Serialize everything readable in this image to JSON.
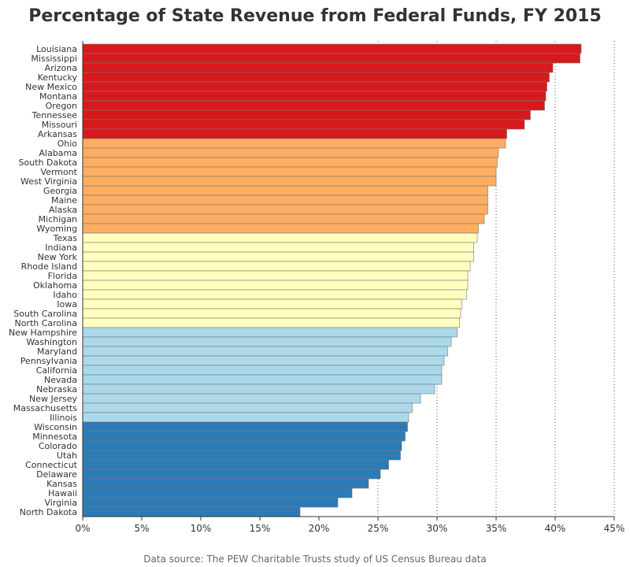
{
  "chart_data": {
    "type": "bar",
    "orientation": "horizontal",
    "title": "Percentage of State Revenue from Federal Funds, FY 2015",
    "source": "Data source: The PEW Charitable Trusts study of US Census Bureau data",
    "xlim": [
      0,
      45
    ],
    "xticks": [
      0,
      5,
      10,
      15,
      20,
      25,
      30,
      35,
      40,
      45
    ],
    "tick_suffix": "%",
    "grid": "vertical dotted at 25%, 30%, 35%, 40%, 45%",
    "colors": {
      "red": "#d7191c",
      "orange": "#fdae61",
      "yellow": "#ffffbf",
      "lightblue": "#abd9e9",
      "blue": "#2c7bb6",
      "bar_edge": "#777777",
      "axis": "#333333"
    },
    "categories": [
      "Louisiana",
      "Mississippi",
      "Arizona",
      "Kentucky",
      "New Mexico",
      "Montana",
      "Oregon",
      "Tennessee",
      "Missouri",
      "Arkansas",
      "Ohio",
      "Alabama",
      "South Dakota",
      "Vermont",
      "West Virginia",
      "Georgia",
      "Maine",
      "Alaska",
      "Michigan",
      "Wyoming",
      "Texas",
      "Indiana",
      "New York",
      "Rhode Island",
      "Florida",
      "Oklahoma",
      "Idaho",
      "Iowa",
      "South Carolina",
      "North Carolina",
      "New Hampshire",
      "Washington",
      "Maryland",
      "Pennsylvania",
      "California",
      "Nevada",
      "Nebraska",
      "New Jersey",
      "Massachusetts",
      "Illinois",
      "Wisconsin",
      "Minnesota",
      "Colorado",
      "Utah",
      "Connecticut",
      "Delaware",
      "Kansas",
      "Hawaii",
      "Virginia",
      "North Dakota"
    ],
    "values": [
      42.2,
      42.1,
      39.8,
      39.5,
      39.3,
      39.2,
      39.1,
      37.9,
      37.4,
      35.9,
      35.8,
      35.2,
      35.1,
      35.0,
      35.0,
      34.3,
      34.3,
      34.3,
      34.0,
      33.5,
      33.4,
      33.1,
      33.1,
      32.8,
      32.6,
      32.6,
      32.5,
      32.1,
      32.0,
      31.9,
      31.7,
      31.2,
      30.9,
      30.6,
      30.4,
      30.4,
      29.8,
      28.6,
      27.9,
      27.6,
      27.5,
      27.3,
      27.0,
      26.9,
      25.9,
      25.2,
      24.2,
      22.8,
      21.6,
      18.4
    ],
    "color_groups": [
      "red",
      "red",
      "red",
      "red",
      "red",
      "red",
      "red",
      "red",
      "red",
      "red",
      "orange",
      "orange",
      "orange",
      "orange",
      "orange",
      "orange",
      "orange",
      "orange",
      "orange",
      "orange",
      "yellow",
      "yellow",
      "yellow",
      "yellow",
      "yellow",
      "yellow",
      "yellow",
      "yellow",
      "yellow",
      "yellow",
      "lightblue",
      "lightblue",
      "lightblue",
      "lightblue",
      "lightblue",
      "lightblue",
      "lightblue",
      "lightblue",
      "lightblue",
      "lightblue",
      "blue",
      "blue",
      "blue",
      "blue",
      "blue",
      "blue",
      "blue",
      "blue",
      "blue",
      "blue"
    ]
  }
}
